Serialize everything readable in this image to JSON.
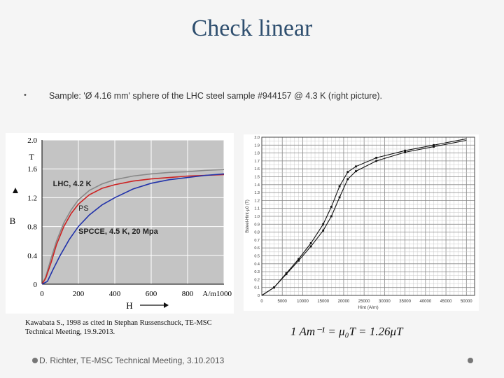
{
  "title": "Check linear",
  "bullet": {
    "text": "Sample: 'Ø 4.16 mm' sphere of the LHC steel sample #944157 @ 4.3 K (right picture)."
  },
  "caption": {
    "line1": "Kawabata S., 1998 as cited in Stephan Russenschuck, TE-MSC",
    "line2": "Technical Meeting, 19.9.2013."
  },
  "formula": {
    "text": "1 Am⁻¹ = μ₀T = 1.26μT"
  },
  "footer": {
    "text": "D. Richter, TE-MSC Technical Meeting, 3.10.2013"
  },
  "colors": {
    "title": "#2f4f6f",
    "red": "#cc2222",
    "blue": "#2233aa",
    "gray": "#888888"
  },
  "chart_data": [
    {
      "type": "line",
      "title": "",
      "xlabel": "H",
      "ylabel": "B",
      "y_unit": "T",
      "x_unit": "A/m",
      "xlim": [
        0,
        1000
      ],
      "ylim": [
        0,
        2.0
      ],
      "x_ticks": [
        "0",
        "200",
        "400",
        "600",
        "800",
        "1000"
      ],
      "y_ticks": [
        "0",
        "0.4",
        "0.8",
        "1.2",
        "1.6",
        "2.0"
      ],
      "annotations": [
        "LHC, 4.2 K",
        "PS",
        "SPCCE, 4.5 K, 20 Mpa"
      ],
      "series": [
        {
          "color": "gray",
          "x": [
            0,
            20,
            50,
            80,
            120,
            160,
            200,
            260,
            330,
            400,
            500,
            600,
            700,
            800,
            900,
            1000
          ],
          "y": [
            0,
            0.1,
            0.36,
            0.6,
            0.85,
            1.03,
            1.17,
            1.3,
            1.39,
            1.45,
            1.5,
            1.53,
            1.55,
            1.56,
            1.58,
            1.59
          ]
        },
        {
          "color": "red",
          "x": [
            0,
            20,
            50,
            80,
            120,
            160,
            200,
            260,
            330,
            400,
            500,
            600,
            700,
            800,
            900,
            1000
          ],
          "y": [
            0,
            0.08,
            0.3,
            0.55,
            0.8,
            0.98,
            1.11,
            1.24,
            1.33,
            1.38,
            1.43,
            1.46,
            1.48,
            1.5,
            1.51,
            1.52
          ]
        },
        {
          "color": "blue",
          "x": [
            0,
            30,
            60,
            100,
            150,
            200,
            260,
            330,
            400,
            500,
            600,
            700,
            800,
            900,
            1000
          ],
          "y": [
            0,
            0.04,
            0.2,
            0.4,
            0.62,
            0.8,
            0.96,
            1.1,
            1.2,
            1.32,
            1.4,
            1.45,
            1.48,
            1.51,
            1.53
          ]
        }
      ]
    },
    {
      "type": "line",
      "title": "",
      "xlabel": "Hint (A/m)",
      "ylabel": "Bsteel-Hint·μ0 (T)",
      "xlim": [
        0,
        52000
      ],
      "ylim": [
        0,
        2.0
      ],
      "x_ticks": [
        "0",
        "5000",
        "10000",
        "15000",
        "20000",
        "25000",
        "30000",
        "35000",
        "40000",
        "45000",
        "50000"
      ],
      "y_ticks": [
        "0",
        "0.1",
        "0.2",
        "0.3",
        "0.4",
        "0.5",
        "0.6",
        "0.7",
        "0.8",
        "0.9",
        "1.0",
        "1.1",
        "1.2",
        "1.3",
        "1.4",
        "1.5",
        "1.6",
        "1.7",
        "1.8",
        "1.9",
        "2.0"
      ],
      "series": [
        {
          "color": "black",
          "x": [
            0,
            3000,
            6000,
            9000,
            12000,
            15000,
            17000,
            19000,
            21000,
            23000,
            28000,
            35000,
            42000,
            50000
          ],
          "y": [
            0,
            0.1,
            0.28,
            0.46,
            0.66,
            0.9,
            1.12,
            1.38,
            1.56,
            1.63,
            1.74,
            1.83,
            1.9,
            1.98
          ]
        },
        {
          "color": "black",
          "x": [
            0,
            3000,
            6000,
            9000,
            12000,
            15000,
            17000,
            19000,
            21000,
            23000,
            28000,
            35000,
            42000,
            50000
          ],
          "y": [
            0,
            0.1,
            0.27,
            0.44,
            0.62,
            0.82,
            1.0,
            1.24,
            1.47,
            1.57,
            1.7,
            1.81,
            1.88,
            1.96
          ]
        }
      ]
    }
  ]
}
